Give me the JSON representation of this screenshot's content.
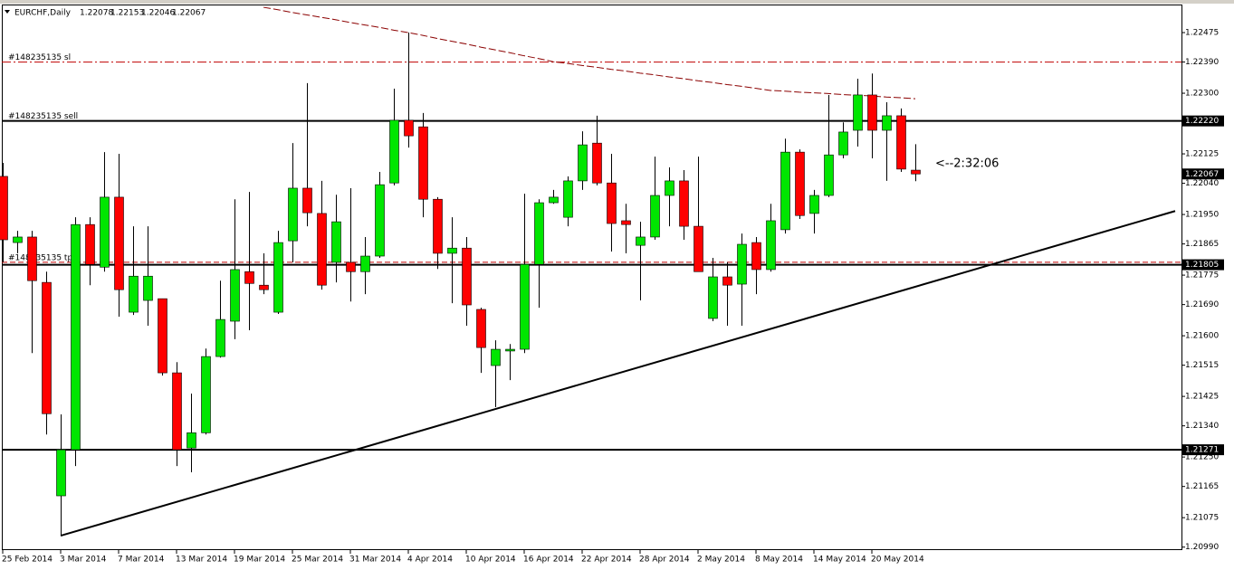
{
  "chart_data": {
    "type": "candlestick",
    "title": "EURCHF,Daily",
    "categories": [
      "25 Feb 2014",
      null,
      null,
      null,
      "3 Mar 2014",
      null,
      null,
      null,
      "7 Mar 2014",
      null,
      null,
      null,
      "13 Mar 2014",
      null,
      null,
      null,
      "19 Mar 2014",
      null,
      null,
      null,
      "25 Mar 2014",
      null,
      null,
      null,
      "31 Mar 2014",
      null,
      null,
      null,
      "4 Apr 2014",
      null,
      null,
      null,
      "10 Apr 2014",
      null,
      null,
      null,
      "16 Apr 2014",
      null,
      null,
      null,
      "22 Apr 2014",
      null,
      null,
      null,
      "28 Apr 2014",
      null,
      null,
      null,
      "2 May 2014",
      null,
      null,
      null,
      "8 May 2014",
      null,
      null,
      null,
      "14 May 2014",
      null,
      null,
      null,
      "20 May 2014",
      null,
      null,
      null
    ],
    "open": [
      1.2206,
      1.21869,
      1.21885,
      1.21754,
      1.21138,
      1.21271,
      1.21921,
      1.21798,
      1.22,
      1.21668,
      1.21702,
      1.21707,
      1.21493,
      1.21276,
      1.2132,
      1.2154,
      1.21642,
      1.21785,
      1.21746,
      1.21668,
      1.21874,
      1.22026,
      1.21953,
      1.21812,
      1.21812,
      1.21785,
      1.2183,
      1.22041,
      1.22222,
      1.22203,
      1.21994,
      1.21838,
      1.21853,
      1.21676,
      1.21514,
      1.21556,
      1.21561,
      1.21806,
      1.21984,
      1.21942,
      1.22047,
      1.22156,
      1.22041,
      1.21932,
      1.21861,
      1.21885,
      1.22005,
      1.22047,
      1.21916,
      1.2165,
      1.2177,
      1.21749,
      1.21869,
      1.21791,
      1.21906,
      1.2213,
      1.21953,
      1.22005,
      1.22122,
      1.22193,
      1.22295,
      1.22193,
      1.22235,
      1.22078
    ],
    "high": [
      1.22099,
      1.21903,
      1.21903,
      1.21785,
      1.21373,
      1.21942,
      1.21942,
      1.2213,
      1.22125,
      1.21916,
      1.21916,
      1.21707,
      1.21524,
      1.21433,
      1.21563,
      1.21759,
      1.21994,
      1.22015,
      1.21838,
      1.21903,
      1.22156,
      1.22329,
      1.22047,
      1.22007,
      1.22026,
      1.21885,
      1.22073,
      1.22313,
      1.22475,
      1.22243,
      1.22,
      1.21942,
      1.21885,
      1.21681,
      1.21587,
      1.21576,
      1.2201,
      1.21994,
      1.22021,
      1.2206,
      1.2219,
      1.22235,
      1.22125,
      1.21981,
      1.21929,
      1.22117,
      1.22086,
      1.22078,
      1.22117,
      1.21825,
      1.21812,
      1.21895,
      1.21885,
      1.21981,
      1.22169,
      1.22138,
      1.22021,
      1.22295,
      1.22216,
      1.22342,
      1.22357,
      1.22274,
      1.22256,
      1.22153
    ],
    "low": [
      1.21812,
      1.21838,
      1.2155,
      1.21315,
      1.21023,
      1.21224,
      1.21746,
      1.21785,
      1.21655,
      1.2166,
      1.21629,
      1.21485,
      1.21224,
      1.21206,
      1.21315,
      1.21537,
      1.2159,
      1.21616,
      1.2172,
      1.21663,
      1.21812,
      1.21916,
      1.21733,
      1.21754,
      1.21699,
      1.2172,
      1.21825,
      1.22034,
      1.22143,
      1.21942,
      1.21793,
      1.21694,
      1.21629,
      1.21493,
      1.21394,
      1.21472,
      1.2155,
      1.21681,
      1.21981,
      1.21916,
      1.22021,
      1.22034,
      1.21843,
      1.21838,
      1.21702,
      1.21877,
      1.21916,
      1.21877,
      1.21785,
      1.21642,
      1.21629,
      1.21629,
      1.2172,
      1.21785,
      1.21895,
      1.21937,
      1.21895,
      1.22,
      1.22112,
      1.22146,
      1.22112,
      1.22047,
      1.22073,
      1.22046
    ],
    "close": [
      1.21877,
      1.21885,
      1.21759,
      1.21375,
      1.21271,
      1.21921,
      1.21806,
      1.22,
      1.21733,
      1.21772,
      1.21772,
      1.21493,
      1.21271,
      1.2132,
      1.2154,
      1.21647,
      1.21791,
      1.21751,
      1.21733,
      1.21869,
      1.22026,
      1.21955,
      1.21746,
      1.21929,
      1.21785,
      1.2183,
      1.22036,
      1.22222,
      1.22177,
      1.21994,
      1.21838,
      1.21853,
      1.21689,
      1.21566,
      1.21561,
      1.21561,
      1.21806,
      1.21984,
      1.22,
      1.22047,
      1.22151,
      1.22041,
      1.21924,
      1.21921,
      1.21885,
      1.22005,
      1.22047,
      1.21916,
      1.21785,
      1.2177,
      1.21746,
      1.21864,
      1.21791,
      1.21932,
      1.2213,
      1.21947,
      1.22005,
      1.22122,
      1.22188,
      1.22295,
      1.22193,
      1.22235,
      1.22081,
      1.22067
    ],
    "up_color": "#00e600",
    "down_color": "#ff0000",
    "moving_average": {
      "color": "#8b0000",
      "values": [
        null,
        null,
        null,
        null,
        null,
        null,
        null,
        null,
        null,
        null,
        null,
        null,
        null,
        null,
        null,
        null,
        null,
        null,
        1.22548,
        1.22541,
        1.22533,
        1.22526,
        1.22519,
        1.22512,
        1.22504,
        1.22497,
        1.2249,
        1.22482,
        1.22475,
        1.22467,
        1.22458,
        1.2245,
        1.22442,
        1.22433,
        1.22425,
        1.22417,
        1.22408,
        1.224,
        1.22391,
        1.22386,
        1.2238,
        1.22375,
        1.22369,
        1.22364,
        1.22358,
        1.22353,
        1.22347,
        1.22342,
        1.22336,
        1.22331,
        1.22325,
        1.2232,
        1.22314,
        1.22308,
        1.22306,
        1.22303,
        1.22301,
        1.22299,
        1.22296,
        1.22294,
        1.22292,
        1.22289,
        1.22287,
        1.22284
      ]
    },
    "orders": [
      {
        "name": "#148235135 sl",
        "value": 1.2239,
        "color": "#c00000",
        "dash": "10 3 2 3"
      },
      {
        "name": "#148235135 sell",
        "value": 1.2222,
        "color": "#008000",
        "dash": "6 3"
      },
      {
        "name": "#148235135 tp",
        "value": 1.21812,
        "color": "#c00000",
        "dash": "6 3"
      }
    ],
    "hlines": [
      {
        "value": 1.2222,
        "label": "1.22220"
      },
      {
        "value": 1.21805,
        "label": "1.21805"
      },
      {
        "value": 1.21271,
        "label": "1.21271"
      }
    ],
    "trendline": {
      "start": 1.21023,
      "end": 1.2196
    },
    "countdown": "<--2:32:06",
    "ylim": [
      1.20984,
      1.22556
    ],
    "yticks": [
      1.22475,
      {
        "value": 1.2239,
        "label": "1.22390"
      },
      {
        "value": 1.223,
        "label": "1.22300"
      },
      1.22215,
      1.22125,
      {
        "value": 1.2204,
        "label": "1.22040"
      },
      {
        "value": 1.2195,
        "label": "1.21950"
      },
      1.21865,
      1.21775,
      {
        "value": 1.2169,
        "label": "1.21690"
      },
      {
        "value": 1.216,
        "label": "1.21600"
      },
      1.21515,
      1.21425,
      {
        "value": 1.2134,
        "label": "1.21340"
      },
      {
        "value": 1.2125,
        "label": "1.21250"
      },
      1.21165,
      1.21075,
      {
        "value": 1.2099,
        "label": "1.20990"
      }
    ]
  }
}
